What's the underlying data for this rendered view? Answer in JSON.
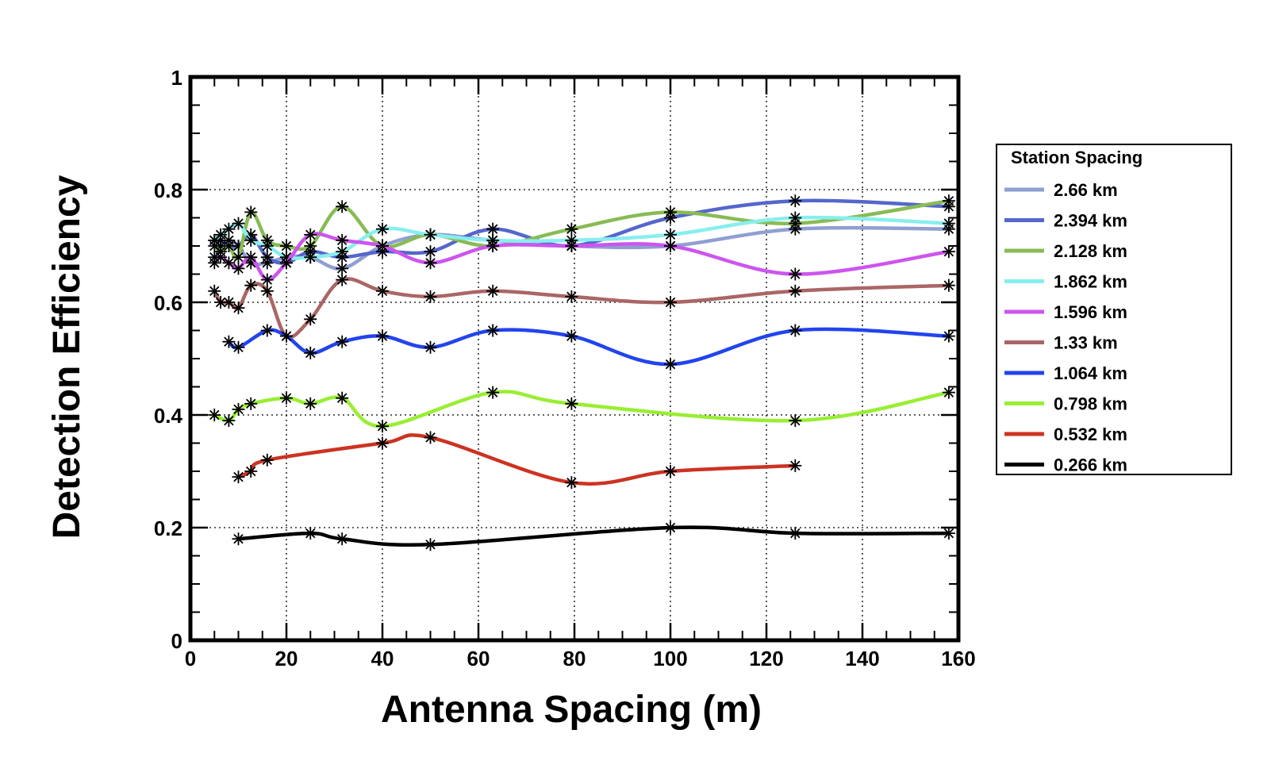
{
  "chart_data": {
    "type": "line",
    "title": "",
    "xlabel": "Antenna Spacing (m)",
    "ylabel": "Detection Efficiency",
    "xlim": [
      0,
      160
    ],
    "ylim": [
      0,
      1
    ],
    "xticks": [
      "0",
      "20",
      "40",
      "60",
      "80",
      "100",
      "120",
      "140",
      "160"
    ],
    "yticks": [
      "0",
      "0.2",
      "0.4",
      "0.6",
      "0.8",
      "1"
    ],
    "grid": true,
    "legend_title": "Station Spacing",
    "legend_position": "right",
    "series": [
      {
        "name": "2.66 km",
        "color": "#8f9fd2",
        "x": [
          5,
          6.3,
          8,
          10,
          12.6,
          16,
          20,
          25,
          31.6,
          40,
          50,
          63,
          79.4,
          100,
          126,
          158
        ],
        "y": [
          0.67,
          0.7,
          0.71,
          0.7,
          0.67,
          0.67,
          0.68,
          0.68,
          0.66,
          0.7,
          0.72,
          0.71,
          0.7,
          0.7,
          0.73,
          0.73
        ]
      },
      {
        "name": "2.394 km",
        "color": "#5566cc",
        "x": [
          5,
          6.3,
          8,
          10,
          12.6,
          16,
          20,
          25,
          31.6,
          40,
          50,
          63,
          79.4,
          100,
          126,
          158
        ],
        "y": [
          0.71,
          0.71,
          0.7,
          0.7,
          0.72,
          0.68,
          0.67,
          0.69,
          0.68,
          0.69,
          0.69,
          0.73,
          0.7,
          0.75,
          0.78,
          0.77
        ]
      },
      {
        "name": "2.128 km",
        "color": "#88bb55",
        "x": [
          5,
          6.3,
          8,
          10,
          12.6,
          16,
          20,
          25,
          31.6,
          40,
          50,
          63,
          79.4,
          100,
          126,
          158
        ],
        "y": [
          0.7,
          0.69,
          0.7,
          0.68,
          0.76,
          0.71,
          0.7,
          0.7,
          0.77,
          0.7,
          0.72,
          0.7,
          0.73,
          0.76,
          0.74,
          0.78
        ]
      },
      {
        "name": "1.862 km",
        "color": "#88eeee",
        "x": [
          5,
          6.3,
          8,
          10,
          12.6,
          16,
          20,
          25,
          31.6,
          40,
          50,
          63,
          79.4,
          100,
          126,
          158
        ],
        "y": [
          0.71,
          0.72,
          0.73,
          0.74,
          0.71,
          0.7,
          0.68,
          0.68,
          0.69,
          0.73,
          0.72,
          0.71,
          0.71,
          0.72,
          0.75,
          0.74
        ]
      },
      {
        "name": "1.596 km",
        "color": "#cc55ee",
        "x": [
          5,
          6.3,
          8,
          10,
          12.6,
          16,
          20,
          25,
          31.6,
          40,
          50,
          63,
          79.4,
          100,
          126,
          158
        ],
        "y": [
          0.68,
          0.68,
          0.67,
          0.66,
          0.68,
          0.64,
          0.67,
          0.72,
          0.71,
          0.7,
          0.67,
          0.7,
          0.7,
          0.7,
          0.65,
          0.69
        ]
      },
      {
        "name": "1.33 km",
        "color": "#aa6666",
        "x": [
          5,
          6.3,
          8,
          10,
          12.6,
          16,
          20,
          25,
          31.6,
          40,
          50,
          63,
          79.4,
          100,
          126,
          158
        ],
        "y": [
          0.62,
          0.6,
          0.6,
          0.59,
          0.63,
          0.62,
          0.54,
          0.57,
          0.64,
          0.62,
          0.61,
          0.62,
          0.61,
          0.6,
          0.62,
          0.63
        ]
      },
      {
        "name": "1.064 km",
        "color": "#2244ee",
        "x": [
          8,
          10,
          16,
          20,
          25,
          31.6,
          40,
          50,
          63,
          79.4,
          100,
          126,
          158
        ],
        "y": [
          0.53,
          0.52,
          0.55,
          0.54,
          0.51,
          0.53,
          0.54,
          0.52,
          0.55,
          0.54,
          0.49,
          0.55,
          0.54
        ]
      },
      {
        "name": "0.798 km",
        "color": "#99ee33",
        "x": [
          5,
          8,
          10,
          12.6,
          20,
          25,
          31.6,
          40,
          63,
          79.4,
          126,
          158
        ],
        "y": [
          0.4,
          0.39,
          0.41,
          0.42,
          0.43,
          0.42,
          0.43,
          0.38,
          0.44,
          0.42,
          0.39,
          0.44
        ]
      },
      {
        "name": "0.532 km",
        "color": "#cc3322",
        "x": [
          10,
          12.6,
          16,
          40,
          50,
          79.4,
          100,
          126
        ],
        "y": [
          0.29,
          0.3,
          0.32,
          0.35,
          0.36,
          0.28,
          0.3,
          0.31
        ]
      },
      {
        "name": "0.266 km",
        "color": "#000000",
        "x": [
          10,
          25,
          31.6,
          50,
          100,
          126,
          158
        ],
        "y": [
          0.18,
          0.19,
          0.18,
          0.17,
          0.2,
          0.19,
          0.19
        ]
      }
    ]
  }
}
